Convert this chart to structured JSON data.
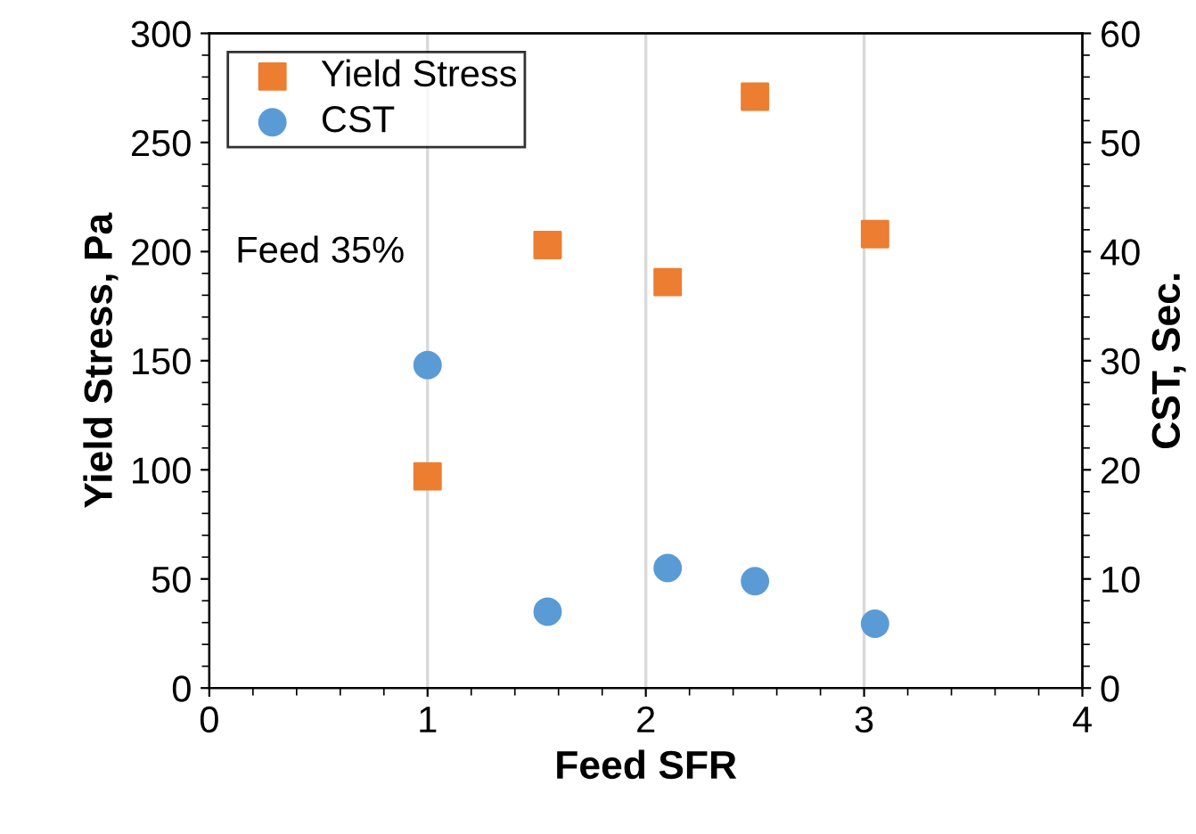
{
  "chart_data": {
    "type": "scatter",
    "xlabel": "Feed SFR",
    "ylabel": "Yield Stress, Pa",
    "y2label": "CST, Sec.",
    "x": [
      1,
      1.55,
      2.1,
      2.5,
      3.05
    ],
    "series": [
      {
        "name": "Yield Stress",
        "color": "#ed7d31",
        "marker": "square",
        "values": [
          97,
          203,
          186,
          271,
          208
        ]
      },
      {
        "name": "CST",
        "color": "#5b9bd5",
        "marker": "circle",
        "axis": "y2",
        "values": [
          29.6,
          7,
          11,
          9.8,
          5.9
        ]
      }
    ],
    "xlim": [
      0,
      4
    ],
    "xticks": [
      0,
      1,
      2,
      3,
      4
    ],
    "ylim": [
      0,
      300
    ],
    "yticks": [
      0,
      50,
      100,
      150,
      200,
      250,
      300
    ],
    "y2lim": [
      0,
      60
    ],
    "y2ticks": [
      0,
      10,
      20,
      30,
      40,
      50,
      60
    ],
    "grid": "x",
    "legend": "top left",
    "annotations": [
      "Feed 35%"
    ]
  }
}
